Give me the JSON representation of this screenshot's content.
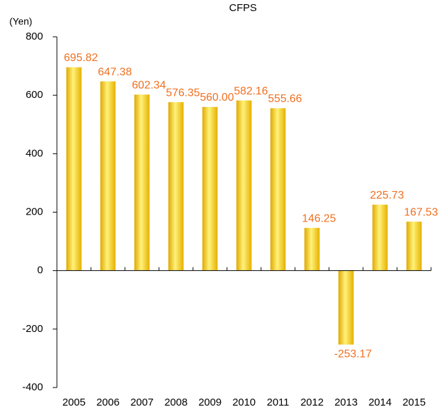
{
  "chart_data": {
    "type": "bar",
    "title": "CFPS",
    "y_axis_label": "(Yen)",
    "categories": [
      "2005",
      "2006",
      "2007",
      "2008",
      "2009",
      "2010",
      "2011",
      "2012",
      "2013",
      "2014",
      "2015"
    ],
    "values": [
      695.82,
      647.38,
      602.34,
      576.35,
      560.0,
      582.16,
      555.66,
      146.25,
      -253.17,
      225.73,
      167.53
    ],
    "value_labels": [
      "695.82",
      "647.38",
      "602.34",
      "576.35",
      "560.00",
      "582.16",
      "555.66",
      "146.25",
      "-253.17",
      "225.73",
      "167.53"
    ],
    "color": "#f5c400",
    "ylim": [
      -400,
      800
    ],
    "yticks": [
      -400,
      -200,
      0,
      200,
      400,
      600,
      800
    ],
    "grid": false
  }
}
